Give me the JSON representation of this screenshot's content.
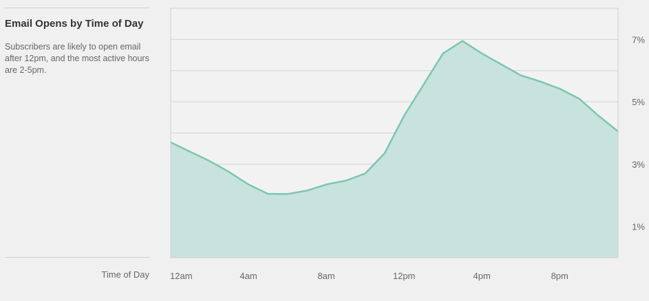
{
  "panel": {
    "title": "Email Opens by Time of Day",
    "description": "Subscribers are likely to open email after 12pm, and the most active hours are 2-5pm.",
    "xlabel": "Time of Day"
  },
  "colors": {
    "area_fill": "#c8e2dd",
    "line": "#7bc6b1",
    "grid": "#d2d2d2",
    "background": "#f0f0f0"
  },
  "chart_data": {
    "type": "area",
    "xlabel": "Time of Day",
    "ylabel": "",
    "x_ticks": [
      {
        "hour": 0,
        "label": "12am"
      },
      {
        "hour": 4,
        "label": "4am"
      },
      {
        "hour": 8,
        "label": "8am"
      },
      {
        "hour": 12,
        "label": "12pm"
      },
      {
        "hour": 16,
        "label": "4pm"
      },
      {
        "hour": 20,
        "label": "8pm"
      }
    ],
    "y_ticks": [
      {
        "value": 1,
        "label": "1%"
      },
      {
        "value": 3,
        "label": "3%"
      },
      {
        "value": 5,
        "label": "5%"
      },
      {
        "value": 7,
        "label": "7%"
      }
    ],
    "xlim": [
      0,
      23
    ],
    "ylim": [
      0,
      8
    ],
    "grid": true,
    "y_axis_position": "right",
    "series": [
      {
        "values": [
          {
            "x": 0,
            "y": 3.7
          },
          {
            "x": 1,
            "y": 3.4
          },
          {
            "x": 2,
            "y": 3.1
          },
          {
            "x": 3,
            "y": 2.75
          },
          {
            "x": 4,
            "y": 2.35
          },
          {
            "x": 5,
            "y": 2.05
          },
          {
            "x": 6,
            "y": 2.04
          },
          {
            "x": 7,
            "y": 2.15
          },
          {
            "x": 8,
            "y": 2.35
          },
          {
            "x": 9,
            "y": 2.47
          },
          {
            "x": 10,
            "y": 2.7
          },
          {
            "x": 11,
            "y": 3.35
          },
          {
            "x": 12,
            "y": 4.55
          },
          {
            "x": 13,
            "y": 5.55
          },
          {
            "x": 14,
            "y": 6.55
          },
          {
            "x": 15,
            "y": 6.95
          },
          {
            "x": 16,
            "y": 6.55
          },
          {
            "x": 17,
            "y": 6.2
          },
          {
            "x": 18,
            "y": 5.85
          },
          {
            "x": 19,
            "y": 5.65
          },
          {
            "x": 20,
            "y": 5.42
          },
          {
            "x": 21,
            "y": 5.1
          },
          {
            "x": 22,
            "y": 4.55
          },
          {
            "x": 23,
            "y": 4.05
          }
        ]
      }
    ]
  }
}
